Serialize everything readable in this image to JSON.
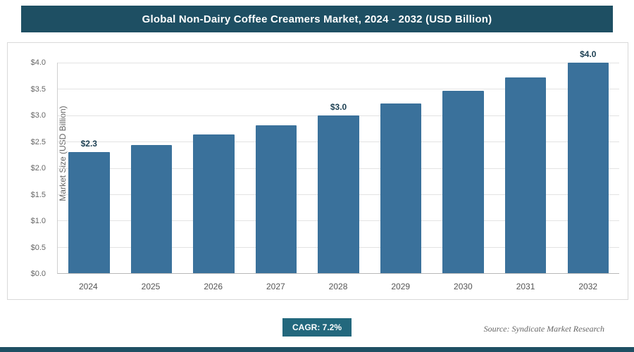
{
  "header": {
    "title": "Global Non-Dairy Coffee Creamers Market, 2024 - 2032 (USD Billion)"
  },
  "chart_data": {
    "type": "bar",
    "title": "Global Non-Dairy Coffee Creamers Market, 2024 - 2032 (USD Billion)",
    "categories": [
      "2024",
      "2025",
      "2026",
      "2027",
      "2028",
      "2029",
      "2030",
      "2031",
      "2032"
    ],
    "values": [
      2.3,
      2.44,
      2.63,
      2.81,
      3.0,
      3.23,
      3.47,
      3.72,
      4.0
    ],
    "value_labels": [
      "$2.3",
      "",
      "",
      "",
      "$3.0",
      "",
      "",
      "",
      "$4.0"
    ],
    "xlabel": "",
    "ylabel": "Market Size (USD Billion)",
    "ylim": [
      0,
      4.0
    ],
    "ytick_step": 0.5,
    "ytick_labels": [
      "$0.0",
      "$0.5",
      "$1.0",
      "$1.5",
      "$2.0",
      "$2.5",
      "$3.0",
      "$3.5",
      "$4.0"
    ],
    "grid": true,
    "legend": false,
    "bar_color": "#3a719b"
  },
  "footer": {
    "cagr_label": "CAGR: 7.2%",
    "source": "Source: Syndicate Market Research"
  },
  "colors": {
    "header_bg": "#1e4f63",
    "badge_bg": "#23687d",
    "bar": "#3a719b",
    "gridline": "#e3e3e3",
    "text_muted": "#666666",
    "value_label": "#1c3f52"
  }
}
